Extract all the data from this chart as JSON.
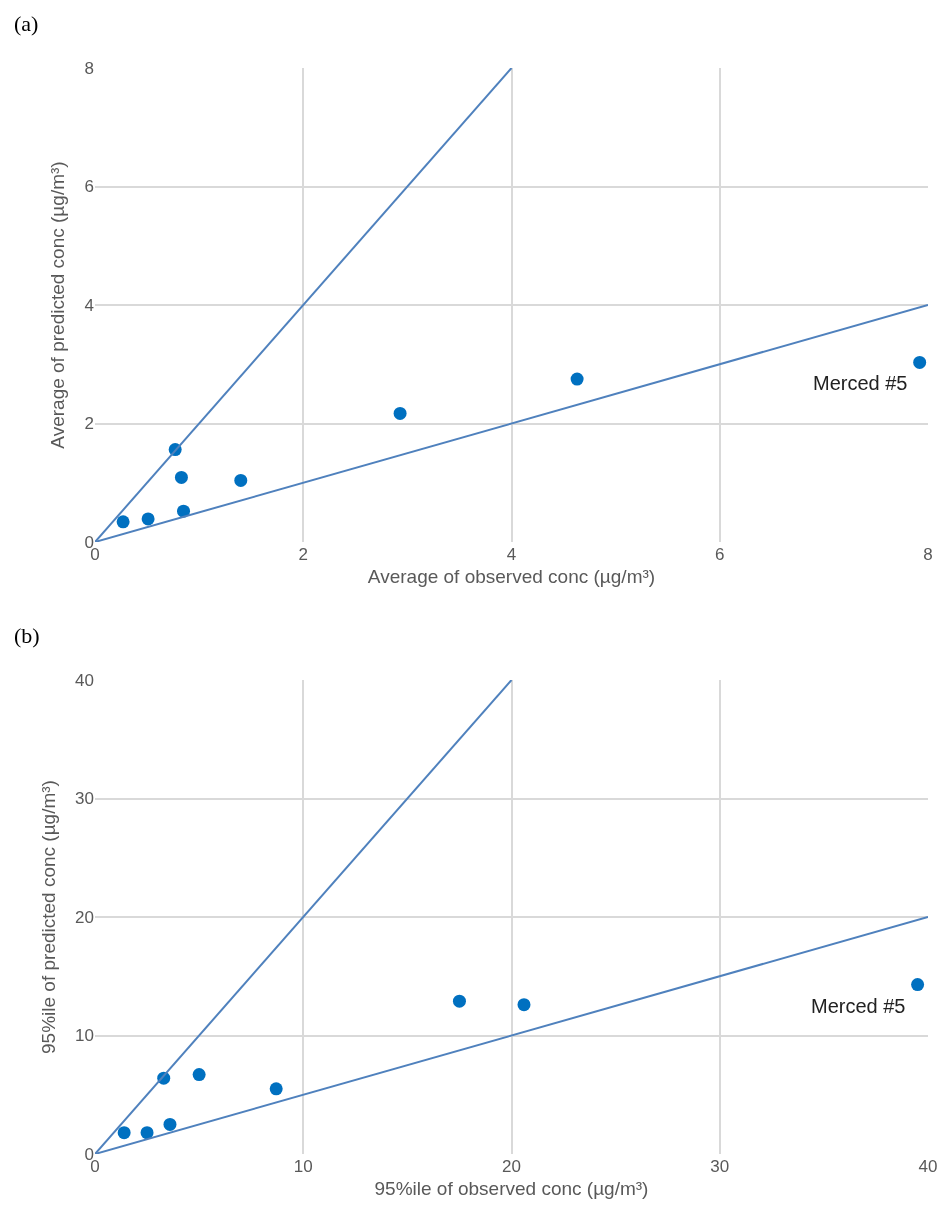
{
  "chart_data": [
    {
      "type": "scatter",
      "annotations": [
        "(a)",
        {
          "text": "Merced #5",
          "x": 7.92,
          "y": 3.03
        }
      ],
      "xlabel": "Average of observed conc (µg/m³)",
      "ylabel": "Average of predicted conc (µg/m³)",
      "xlim": [
        0,
        8
      ],
      "ylim": [
        0,
        8
      ],
      "xticks": [
        0,
        2,
        4,
        6,
        8
      ],
      "yticks": [
        0,
        2,
        4,
        6,
        8
      ],
      "grid": true,
      "marker": "circle",
      "x": [
        0.27,
        0.51,
        0.77,
        0.83,
        0.85,
        1.4,
        2.93,
        4.63,
        7.92
      ],
      "series": [
        {
          "color": "#0070c0",
          "values": [
            0.34,
            0.39,
            1.56,
            1.09,
            0.52,
            1.04,
            2.17,
            2.75,
            3.03
          ]
        },
        {
          "type": "line",
          "color": "#4f81bd",
          "marker": "none",
          "x": [
            0,
            4
          ],
          "values": [
            0,
            8
          ]
        },
        {
          "type": "line",
          "color": "#4f81bd",
          "marker": "none",
          "x": [
            0,
            8
          ],
          "values": [
            0,
            4
          ]
        }
      ]
    },
    {
      "type": "scatter",
      "annotations": [
        "(b)",
        {
          "text": "Merced #5",
          "x": 39.5,
          "y": 14.3
        }
      ],
      "xlabel": "95%ile of observed conc (µg/m³)",
      "ylabel": "95%ile of predicted conc (µg/m³)",
      "xlim": [
        0,
        40
      ],
      "ylim": [
        0,
        40
      ],
      "xticks": [
        0,
        10,
        20,
        30,
        40
      ],
      "yticks": [
        0,
        10,
        20,
        30,
        40
      ],
      "grid": true,
      "marker": "circle",
      "x": [
        1.4,
        2.5,
        3.6,
        3.3,
        5,
        8.7,
        17.5,
        20.6,
        39.5
      ],
      "series": [
        {
          "color": "#0070c0",
          "values": [
            1.8,
            1.8,
            2.5,
            6.4,
            6.7,
            5.5,
            12.9,
            12.6,
            14.3
          ]
        },
        {
          "type": "line",
          "color": "#4f81bd",
          "marker": "none",
          "x": [
            0,
            20
          ],
          "values": [
            0,
            40
          ]
        },
        {
          "type": "line",
          "color": "#4f81bd",
          "marker": "none",
          "x": [
            0,
            40
          ],
          "values": [
            0,
            20
          ]
        }
      ]
    }
  ]
}
